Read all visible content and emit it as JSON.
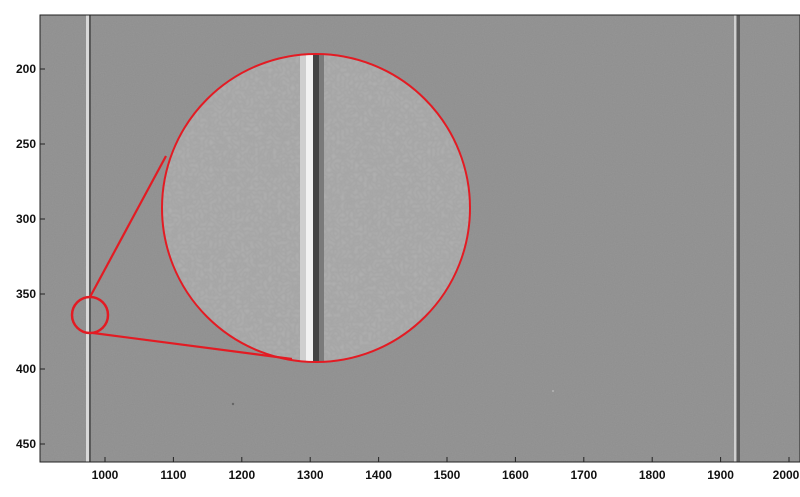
{
  "image": {
    "plot_bg": "#8c8c8c",
    "annotation_color": "#e31b23",
    "x_ticks": [
      "1000",
      "1100",
      "1200",
      "1300",
      "1400",
      "1500",
      "1600",
      "1700",
      "1800",
      "1900",
      "2000"
    ],
    "y_ticks": [
      "200",
      "250",
      "300",
      "350",
      "400",
      "450"
    ]
  }
}
